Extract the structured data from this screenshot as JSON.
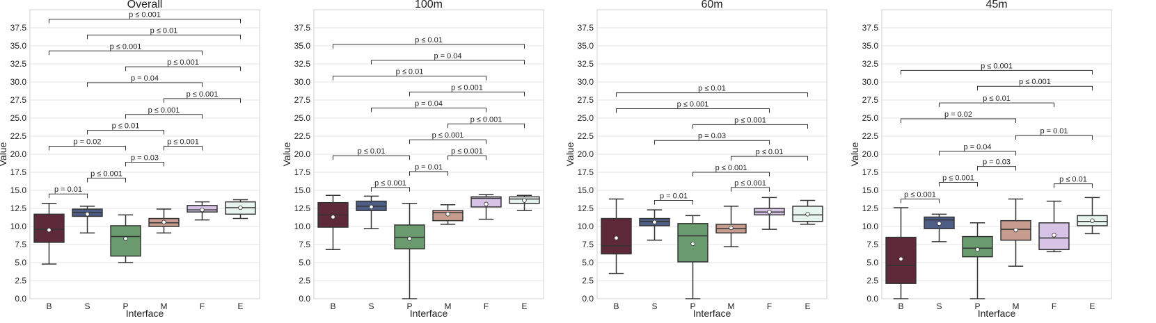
{
  "figure": {
    "ylim": [
      0,
      40
    ],
    "yticks": [
      "0.0",
      "2.5",
      "5.0",
      "7.5",
      "10.0",
      "12.5",
      "15.0",
      "17.5",
      "20.0",
      "22.5",
      "25.0",
      "27.5",
      "30.0",
      "32.5",
      "35.0",
      "37.5"
    ],
    "ytick_values": [
      0,
      2.5,
      5,
      7.5,
      10,
      12.5,
      15,
      17.5,
      20,
      22.5,
      25,
      27.5,
      30,
      32.5,
      35,
      37.5
    ]
  },
  "colors": {
    "B": "#5e2a3a",
    "S": "#4d5d86",
    "P": "#6a9b6e",
    "M": "#c59c8e",
    "F": "#d6c3e6",
    "E": "#e8f4ee",
    "grid": "#e4e4e4",
    "line": "#333333"
  },
  "chart_data": [
    {
      "type": "box",
      "title": "Overall",
      "xlabel": "Interface",
      "ylabel": "Value",
      "categories": [
        "B",
        "S",
        "P",
        "M",
        "F",
        "E"
      ],
      "boxes": [
        {
          "cat": "B",
          "whislo": 4.8,
          "q1": 7.8,
          "med": 9.6,
          "q3": 11.7,
          "whishi": 13.2,
          "mean": 9.5
        },
        {
          "cat": "S",
          "whislo": 9.1,
          "q1": 11.4,
          "med": 11.9,
          "q3": 12.4,
          "whishi": 12.8,
          "mean": 11.7
        },
        {
          "cat": "P",
          "whislo": 5.0,
          "q1": 5.9,
          "med": 8.6,
          "q3": 10.1,
          "whishi": 11.6,
          "mean": 8.3
        },
        {
          "cat": "M",
          "whislo": 9.1,
          "q1": 10.0,
          "med": 10.5,
          "q3": 11.1,
          "whishi": 12.4,
          "mean": 10.6
        },
        {
          "cat": "F",
          "whislo": 10.9,
          "q1": 12.0,
          "med": 12.3,
          "q3": 12.9,
          "whishi": 13.4,
          "mean": 12.3
        },
        {
          "cat": "E",
          "whislo": 11.1,
          "q1": 11.7,
          "med": 12.6,
          "q3": 13.4,
          "whishi": 13.7,
          "mean": 12.6
        }
      ],
      "annotations": [
        {
          "from": "B",
          "to": "S",
          "y": 14.5,
          "label": "p = 0.01"
        },
        {
          "from": "S",
          "to": "P",
          "y": 16.7,
          "label": "p ≤ 0.001"
        },
        {
          "from": "P",
          "to": "M",
          "y": 18.9,
          "label": "p = 0.03"
        },
        {
          "from": "M",
          "to": "F",
          "y": 21.1,
          "label": "p ≤ 0.001"
        },
        {
          "from": "B",
          "to": "P",
          "y": 21.1,
          "label": "p = 0.02"
        },
        {
          "from": "S",
          "to": "M",
          "y": 23.3,
          "label": "p ≤ 0.01"
        },
        {
          "from": "P",
          "to": "F",
          "y": 25.5,
          "label": "p ≤ 0.001"
        },
        {
          "from": "M",
          "to": "E",
          "y": 27.7,
          "label": "p ≤ 0.001"
        },
        {
          "from": "S",
          "to": "F",
          "y": 29.9,
          "label": "p = 0.04"
        },
        {
          "from": "P",
          "to": "E",
          "y": 32.1,
          "label": "p ≤ 0.001"
        },
        {
          "from": "B",
          "to": "F",
          "y": 34.3,
          "label": "p ≤ 0.001"
        },
        {
          "from": "S",
          "to": "E",
          "y": 36.5,
          "label": "p ≤ 0.01"
        },
        {
          "from": "B",
          "to": "E",
          "y": 38.7,
          "label": "p ≤ 0.001"
        }
      ]
    },
    {
      "type": "box",
      "title": "100m",
      "xlabel": "Interface",
      "ylabel": "Value",
      "categories": [
        "B",
        "S",
        "P",
        "M",
        "F",
        "E"
      ],
      "boxes": [
        {
          "cat": "B",
          "whislo": 6.8,
          "q1": 9.9,
          "med": 11.6,
          "q3": 13.3,
          "whishi": 14.3,
          "mean": 11.3
        },
        {
          "cat": "S",
          "whislo": 9.7,
          "q1": 12.2,
          "med": 12.8,
          "q3": 13.5,
          "whishi": 14.2,
          "mean": 12.7
        },
        {
          "cat": "P",
          "whislo": 0.0,
          "q1": 6.9,
          "med": 8.5,
          "q3": 10.2,
          "whishi": 13.2,
          "mean": 8.3
        },
        {
          "cat": "M",
          "whislo": 10.3,
          "q1": 10.8,
          "med": 11.9,
          "q3": 12.2,
          "whishi": 13.0,
          "mean": 11.7
        },
        {
          "cat": "F",
          "whislo": 11.0,
          "q1": 12.7,
          "med": 13.9,
          "q3": 14.1,
          "whishi": 14.4,
          "mean": 13.1
        },
        {
          "cat": "E",
          "whislo": 12.2,
          "q1": 13.2,
          "med": 13.8,
          "q3": 14.1,
          "whishi": 14.3,
          "mean": 13.6
        }
      ],
      "annotations": [
        {
          "from": "S",
          "to": "P",
          "y": 15.4,
          "label": "p ≤ 0.001"
        },
        {
          "from": "P",
          "to": "M",
          "y": 17.6,
          "label": "p = 0.01"
        },
        {
          "from": "B",
          "to": "P",
          "y": 19.8,
          "label": "p ≤ 0.01"
        },
        {
          "from": "M",
          "to": "F",
          "y": 19.8,
          "label": "p ≤ 0.001"
        },
        {
          "from": "P",
          "to": "F",
          "y": 22.0,
          "label": "p ≤ 0.001"
        },
        {
          "from": "M",
          "to": "E",
          "y": 24.2,
          "label": "p ≤ 0.001"
        },
        {
          "from": "S",
          "to": "F",
          "y": 26.4,
          "label": "p = 0.04"
        },
        {
          "from": "P",
          "to": "E",
          "y": 28.6,
          "label": "p ≤ 0.001"
        },
        {
          "from": "B",
          "to": "F",
          "y": 30.8,
          "label": "p ≤ 0.01"
        },
        {
          "from": "S",
          "to": "E",
          "y": 33.0,
          "label": "p = 0.04"
        },
        {
          "from": "B",
          "to": "E",
          "y": 35.2,
          "label": "p ≤ 0.01"
        }
      ]
    },
    {
      "type": "box",
      "title": "60m",
      "xlabel": "Interface",
      "ylabel": "Value",
      "categories": [
        "B",
        "S",
        "P",
        "M",
        "F",
        "E"
      ],
      "boxes": [
        {
          "cat": "B",
          "whislo": 3.5,
          "q1": 6.2,
          "med": 7.3,
          "q3": 11.1,
          "whishi": 13.8,
          "mean": 8.4
        },
        {
          "cat": "S",
          "whislo": 8.1,
          "q1": 10.1,
          "med": 10.7,
          "q3": 11.1,
          "whishi": 12.3,
          "mean": 10.6
        },
        {
          "cat": "P",
          "whislo": 0.0,
          "q1": 5.1,
          "med": 8.7,
          "q3": 10.4,
          "whishi": 11.5,
          "mean": 7.6
        },
        {
          "cat": "M",
          "whislo": 7.2,
          "q1": 9.1,
          "med": 9.7,
          "q3": 10.3,
          "whishi": 12.8,
          "mean": 9.8
        },
        {
          "cat": "F",
          "whislo": 9.6,
          "q1": 11.6,
          "med": 12.0,
          "q3": 12.5,
          "whishi": 14.0,
          "mean": 12.0
        },
        {
          "cat": "E",
          "whislo": 10.3,
          "q1": 10.7,
          "med": 11.6,
          "q3": 12.8,
          "whishi": 13.6,
          "mean": 11.7
        }
      ],
      "annotations": [
        {
          "from": "S",
          "to": "P",
          "y": 13.6,
          "label": "p = 0.01"
        },
        {
          "from": "M",
          "to": "F",
          "y": 15.4,
          "label": "p ≤ 0.001"
        },
        {
          "from": "P",
          "to": "F",
          "y": 17.5,
          "label": "p ≤ 0.001"
        },
        {
          "from": "M",
          "to": "E",
          "y": 19.7,
          "label": "p ≤ 0.01"
        },
        {
          "from": "S",
          "to": "F",
          "y": 21.9,
          "label": "p = 0.03"
        },
        {
          "from": "P",
          "to": "E",
          "y": 24.1,
          "label": "p ≤ 0.001"
        },
        {
          "from": "B",
          "to": "F",
          "y": 26.3,
          "label": "p ≤ 0.001"
        },
        {
          "from": "B",
          "to": "E",
          "y": 28.5,
          "label": "p ≤ 0.01"
        }
      ]
    },
    {
      "type": "box",
      "title": "45m",
      "xlabel": "Interface",
      "ylabel": "Value",
      "categories": [
        "B",
        "S",
        "P",
        "M",
        "F",
        "E"
      ],
      "boxes": [
        {
          "cat": "B",
          "whislo": 0.0,
          "q1": 2.1,
          "med": 4.6,
          "q3": 8.5,
          "whishi": 12.6,
          "mean": 5.5
        },
        {
          "cat": "S",
          "whislo": 7.9,
          "q1": 9.7,
          "med": 10.9,
          "q3": 11.3,
          "whishi": 11.7,
          "mean": 10.4
        },
        {
          "cat": "P",
          "whislo": 0.0,
          "q1": 5.8,
          "med": 7.0,
          "q3": 8.6,
          "whishi": 10.5,
          "mean": 6.8
        },
        {
          "cat": "M",
          "whislo": 4.5,
          "q1": 8.1,
          "med": 9.6,
          "q3": 10.8,
          "whishi": 13.8,
          "mean": 9.5
        },
        {
          "cat": "F",
          "whislo": 6.5,
          "q1": 6.8,
          "med": 8.4,
          "q3": 10.5,
          "whishi": 13.5,
          "mean": 8.8
        },
        {
          "cat": "E",
          "whislo": 9.0,
          "q1": 10.1,
          "med": 10.7,
          "q3": 11.5,
          "whishi": 14.0,
          "mean": 10.8
        }
      ],
      "annotations": [
        {
          "from": "B",
          "to": "S",
          "y": 13.8,
          "label": "p ≤ 0.001"
        },
        {
          "from": "F",
          "to": "E",
          "y": 15.9,
          "label": "p ≤ 0.01"
        },
        {
          "from": "S",
          "to": "P",
          "y": 16.1,
          "label": "p ≤ 0.001"
        },
        {
          "from": "P",
          "to": "M",
          "y": 18.3,
          "label": "p = 0.03"
        },
        {
          "from": "S",
          "to": "M",
          "y": 20.4,
          "label": "p = 0.04"
        },
        {
          "from": "M",
          "to": "E",
          "y": 22.6,
          "label": "p = 0.01"
        },
        {
          "from": "B",
          "to": "M",
          "y": 24.9,
          "label": "p = 0.02"
        },
        {
          "from": "S",
          "to": "F",
          "y": 27.1,
          "label": "p ≤ 0.01"
        },
        {
          "from": "P",
          "to": "E",
          "y": 29.4,
          "label": "p ≤ 0.001"
        },
        {
          "from": "B",
          "to": "E",
          "y": 31.6,
          "label": "p ≤ 0.001"
        }
      ]
    }
  ]
}
